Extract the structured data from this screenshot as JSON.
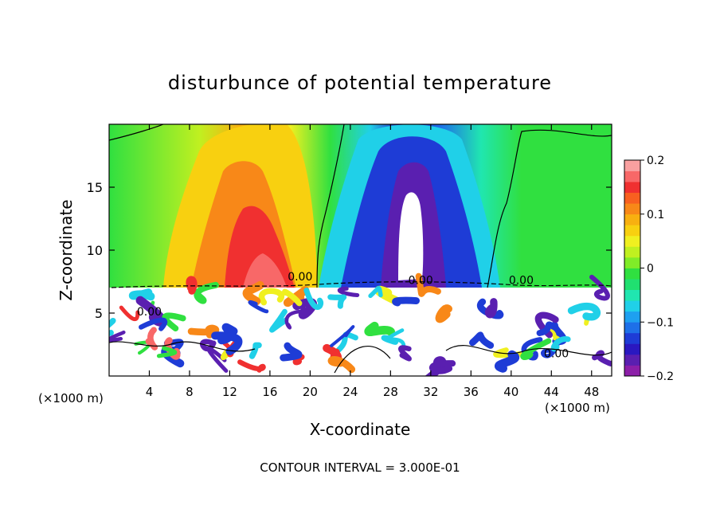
{
  "chart_data": {
    "type": "heatmap",
    "title": "disturbunce of potential temperature",
    "xlabel": "X-coordinate",
    "ylabel": "Z-coordinate",
    "x_unit_left": "(×1000 m)",
    "x_unit_right": "(×1000 m)",
    "xlim": [
      0,
      50
    ],
    "ylim": [
      0,
      20
    ],
    "x_ticks": [
      4,
      8,
      12,
      16,
      20,
      24,
      28,
      32,
      36,
      40,
      44,
      48
    ],
    "y_ticks": [
      5,
      10,
      15
    ],
    "colorbar": {
      "range": [
        -0.2,
        0.2
      ],
      "tick_values": [
        0.2,
        0.1,
        0,
        -0.1,
        -0.2
      ],
      "tick_labels": [
        "0.2",
        "0.1",
        "0",
        "−0.1",
        "−0.2"
      ],
      "colors": [
        "#8c1fa8",
        "#5a1fb0",
        "#2a18c0",
        "#1e3cd6",
        "#1e70e8",
        "#1ea0f0",
        "#20d0e8",
        "#20e6b0",
        "#20e070",
        "#30e040",
        "#80ec28",
        "#c0f020",
        "#f0f020",
        "#f8d010",
        "#f8b010",
        "#f88818",
        "#f86020",
        "#f03030",
        "#f86868",
        "#f8a0a0"
      ]
    },
    "contour_labels": [
      {
        "x": 4,
        "z": 4.8,
        "text": "0.00"
      },
      {
        "x": 19,
        "z": 7.6,
        "text": "0.00"
      },
      {
        "x": 31,
        "z": 7.3,
        "text": "0.00"
      },
      {
        "x": 41,
        "z": 7.3,
        "text": "0.00"
      },
      {
        "x": 44.5,
        "z": 1.5,
        "text": "0.00"
      }
    ],
    "contour_interval_label": "CONTOUR INTERVAL = 3.000E-01"
  }
}
